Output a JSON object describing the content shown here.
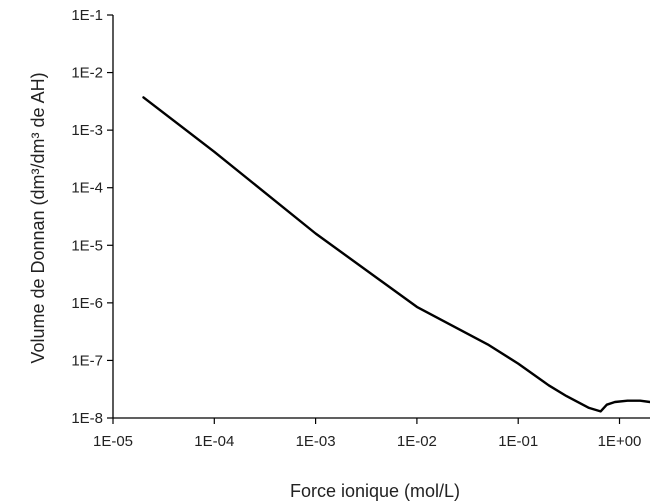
{
  "chart_data": {
    "type": "line",
    "title": "",
    "xlabel": "Force ionique (mol/L)",
    "ylabel": "Volume de Donnan (dm³/dm³ de AH)",
    "xscale": "log",
    "yscale": "log",
    "xlim": [
      1e-05,
      2
    ],
    "ylim": [
      1e-08,
      0.1
    ],
    "grid": false,
    "legend": "none",
    "line_color": "#000000",
    "x_tick_labels": [
      "1E-05",
      "1E-04",
      "1E-03",
      "1E-02",
      "1E-01",
      "1E+00"
    ],
    "x_tick_values": [
      1e-05,
      0.0001,
      0.001,
      0.01,
      0.1,
      1
    ],
    "y_tick_labels": [
      "1E-8",
      "1E-7",
      "1E-6",
      "1E-5",
      "1E-4",
      "1E-3",
      "1E-2",
      "1E-1"
    ],
    "y_tick_values": [
      1e-08,
      1e-07,
      1e-06,
      1e-05,
      0.0001,
      0.001,
      0.01,
      0.1
    ],
    "series": [
      {
        "x": [
          2e-05,
          0.0001,
          0.001,
          0.01,
          0.05,
          0.1,
          0.2,
          0.3,
          0.5,
          0.65,
          0.75,
          0.9,
          1.2,
          1.6,
          2.0
        ],
        "y": [
          0.0037,
          0.00042,
          1.6e-05,
          8.5e-07,
          1.9e-07,
          8.8e-08,
          3.7e-08,
          2.4e-08,
          1.5e-08,
          1.3e-08,
          1.7e-08,
          1.9e-08,
          2e-08,
          2e-08,
          1.9e-08
        ]
      }
    ]
  }
}
